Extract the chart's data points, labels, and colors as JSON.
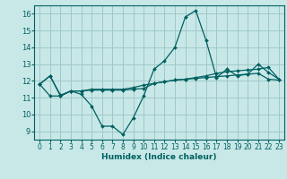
{
  "xlabel": "Humidex (Indice chaleur)",
  "bg_color": "#c8e8e8",
  "grid_color": "#a0c8c8",
  "line_color": "#006060",
  "xlim": [
    -0.5,
    23.5
  ],
  "ylim": [
    8.5,
    16.5
  ],
  "yticks": [
    9,
    10,
    11,
    12,
    13,
    14,
    15,
    16
  ],
  "xticks": [
    0,
    1,
    2,
    3,
    4,
    5,
    6,
    7,
    8,
    9,
    10,
    11,
    12,
    13,
    14,
    15,
    16,
    17,
    18,
    19,
    20,
    21,
    22,
    23
  ],
  "series": [
    [
      11.8,
      12.3,
      11.1,
      11.4,
      11.2,
      10.5,
      9.3,
      9.3,
      8.8,
      9.8,
      11.1,
      12.7,
      13.2,
      14.0,
      15.8,
      16.2,
      14.4,
      12.2,
      12.7,
      12.3,
      12.4,
      13.0,
      12.5,
      12.1
    ],
    [
      11.8,
      12.3,
      11.15,
      11.4,
      11.4,
      11.5,
      11.5,
      11.5,
      11.5,
      11.6,
      11.75,
      11.85,
      11.95,
      12.05,
      12.1,
      12.2,
      12.3,
      12.45,
      12.55,
      12.6,
      12.65,
      12.7,
      12.8,
      12.1
    ],
    [
      11.8,
      11.1,
      11.1,
      11.4,
      11.4,
      11.45,
      11.45,
      11.45,
      11.45,
      11.5,
      11.55,
      11.85,
      11.95,
      12.05,
      12.1,
      12.15,
      12.2,
      12.25,
      12.3,
      12.35,
      12.4,
      12.45,
      12.1,
      12.05
    ]
  ],
  "marker": "D",
  "markersize": 2.0,
  "linewidth": 0.9,
  "tick_fontsize": 5.5,
  "xlabel_fontsize": 6.5
}
